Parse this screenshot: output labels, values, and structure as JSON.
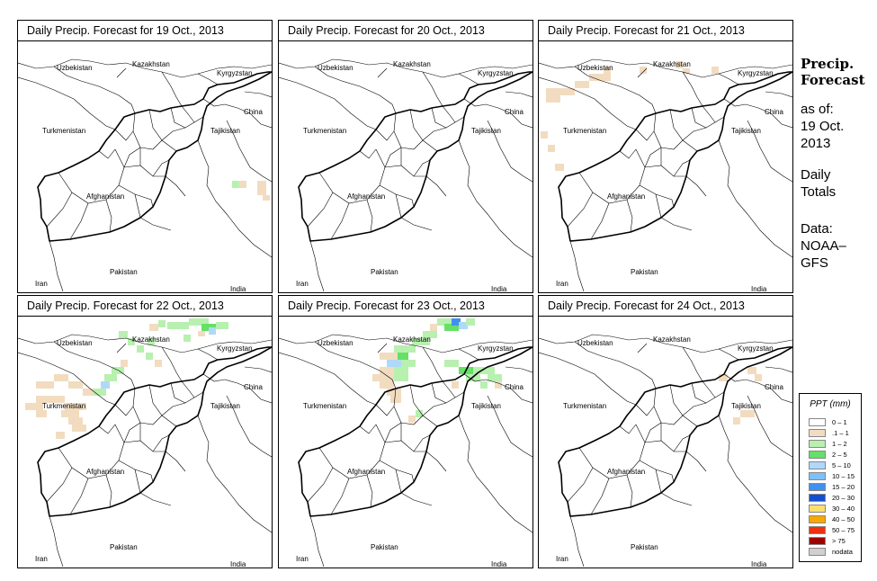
{
  "panels": [
    {
      "title": "Daily Precip. Forecast for  19 Oct., 2013"
    },
    {
      "title": "Daily Precip. Forecast for  20 Oct., 2013"
    },
    {
      "title": "Daily Precip. Forecast for  21 Oct., 2013"
    },
    {
      "title": "Daily Precip. Forecast for  22 Oct., 2013"
    },
    {
      "title": "Daily Precip. Forecast for  23 Oct., 2013"
    },
    {
      "title": "Daily Precip. Forecast for  24 Oct., 2013"
    }
  ],
  "map_labels": {
    "uzbekistan": "Uzbekistan",
    "kazakhstan": "Kazakhstan",
    "kyrgyzstan": "Kyrgyzstan",
    "china": "China",
    "turkmenistan": "Turkmenistan",
    "tajikistan": "Tajikistan",
    "afghanistan": "Afghanistan",
    "pakistan": "Pakistan",
    "iran": "Iran",
    "india": "India"
  },
  "sidebar": {
    "heading_line1": "Precip.",
    "heading_line2": "Forecast",
    "asof": "as of:",
    "date_line1": "19 Oct.",
    "date_line2": "2013",
    "daily": "Daily",
    "totals": "Totals",
    "data_label": "Data:",
    "source_line1": "NOAA–",
    "source_line2": "GFS"
  },
  "legend": {
    "title": "PPT (mm)",
    "items": [
      {
        "label": "0 – 1",
        "color": "#ffffff"
      },
      {
        "label": ".1 – 1",
        "color": "#f2dcc0"
      },
      {
        "label": "1 – 2",
        "color": "#b8f0b0"
      },
      {
        "label": "2 – 5",
        "color": "#66e066"
      },
      {
        "label": "5 – 10",
        "color": "#b0d8f8"
      },
      {
        "label": "10 – 15",
        "color": "#80c0f8"
      },
      {
        "label": "15 – 20",
        "color": "#4090f0"
      },
      {
        "label": "20 – 30",
        "color": "#1050d0"
      },
      {
        "label": "30 – 40",
        "color": "#f8e070"
      },
      {
        "label": "40 – 50",
        "color": "#f8a800"
      },
      {
        "label": "50 – 75",
        "color": "#f03010"
      },
      {
        "label": "> 75",
        "color": "#a00000"
      },
      {
        "label": "nodata",
        "color": "#d0d0d0"
      }
    ]
  },
  "colors": {
    "light_tan": "#f2dcc0",
    "light_green": "#b8f0b0",
    "green": "#66e066",
    "light_blue": "#b0d8f8",
    "blue": "#4090f0",
    "dark_blue": "#1050d0"
  }
}
